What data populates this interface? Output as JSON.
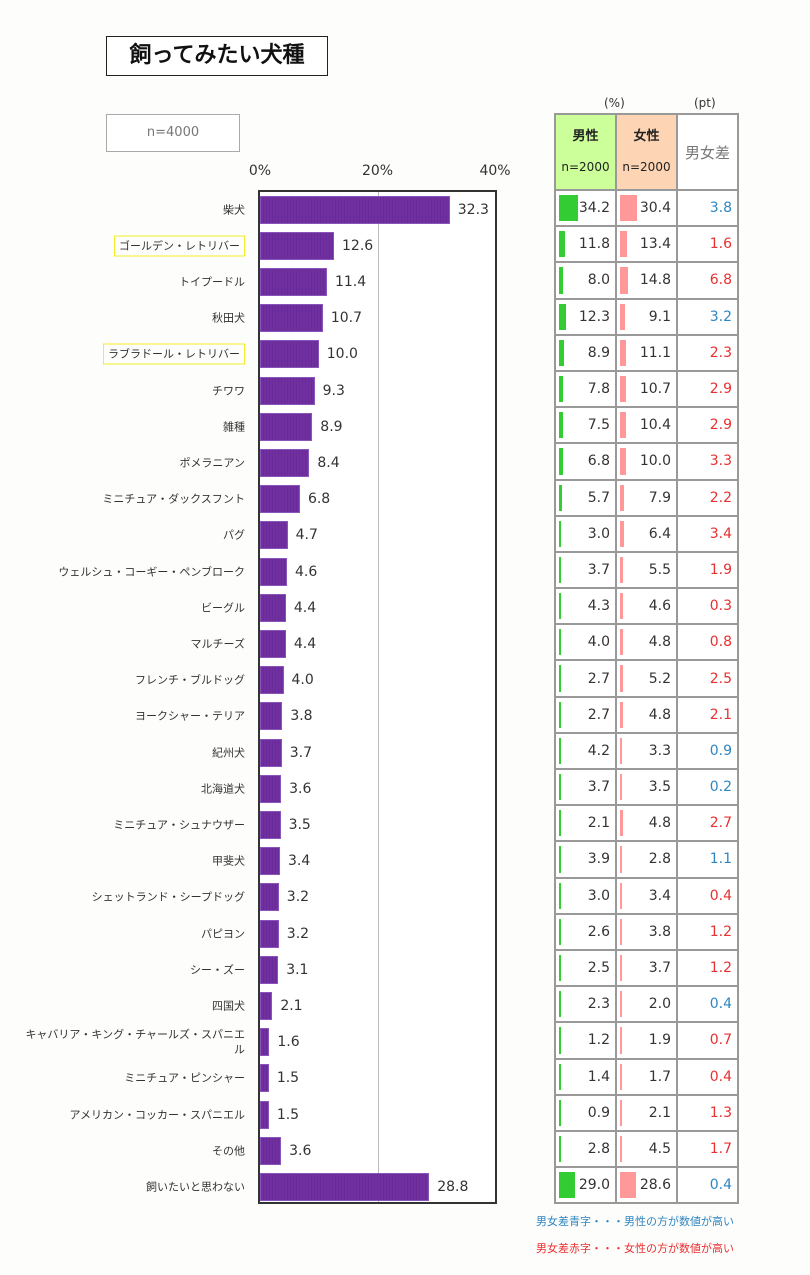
{
  "title": "飼ってみたい犬種",
  "sample_note": "n=4000",
  "units": {
    "percent": "(%)",
    "pt": "(pt)"
  },
  "table_header": {
    "male": "男性",
    "male_n": "n=2000",
    "female": "女性",
    "female_n": "n=2000",
    "diff": "男女差"
  },
  "legend": {
    "blue": "男女差青字・・・男性の方が数値が高い",
    "red": "男女差赤字・・・女性の方が数値が高い"
  },
  "colors": {
    "bar": "#7030a0",
    "male": "#33cc33",
    "female": "#ff9999",
    "male_header": "#ccff99",
    "female_header": "#fdd5b4",
    "diff_blue": "#2e86c1",
    "diff_red": "#e83030",
    "highlight": "#f2ee2a"
  },
  "chart_data": {
    "type": "bar",
    "orientation": "horizontal",
    "title": "飼ってみたい犬種",
    "xlabel": "",
    "ylabel": "",
    "xlim": [
      0,
      40
    ],
    "ticks": [
      "0%",
      "20%",
      "40%"
    ],
    "tick_values": [
      0,
      20,
      40
    ],
    "grid": true,
    "categories": [
      "柴犬",
      "ゴールデン・レトリバー",
      "トイプードル",
      "秋田犬",
      "ラブラドール・レトリバー",
      "チワワ",
      "雑種",
      "ポメラニアン",
      "ミニチュア・ダックスフント",
      "パグ",
      "ウェルシュ・コーギー・ペンブローク",
      "ビーグル",
      "マルチーズ",
      "フレンチ・ブルドッグ",
      "ヨークシャー・テリア",
      "紀州犬",
      "北海道犬",
      "ミニチュア・シュナウザー",
      "甲斐犬",
      "シェットランド・シープドッグ",
      "パピヨン",
      "シー・ズー",
      "四国犬",
      "キャバリア・キング・チャールズ・スパニエル",
      "ミニチュア・ピンシャー",
      "アメリカン・コッカー・スパニエル",
      "その他",
      "飼いたいと思わない"
    ],
    "highlighted": [
      "ゴールデン・レトリバー",
      "ラブラドール・レトリバー"
    ],
    "values": [
      32.3,
      12.6,
      11.4,
      10.7,
      10.0,
      9.3,
      8.9,
      8.4,
      6.8,
      4.7,
      4.6,
      4.4,
      4.4,
      4.0,
      3.8,
      3.7,
      3.6,
      3.5,
      3.4,
      3.2,
      3.2,
      3.1,
      2.1,
      1.6,
      1.5,
      1.5,
      3.6,
      28.8
    ],
    "labels": [
      "32.3",
      "12.6",
      "11.4",
      "10.7",
      "10.0",
      "9.3",
      "8.9",
      "8.4",
      "6.8",
      "4.7",
      "4.6",
      "4.4",
      "4.4",
      "4.0",
      "3.8",
      "3.7",
      "3.6",
      "3.5",
      "3.4",
      "3.2",
      "3.2",
      "3.1",
      "2.1",
      "1.6",
      "1.5",
      "1.5",
      "3.6",
      "28.8"
    ],
    "series": [
      {
        "name": "男性",
        "n": 2000,
        "values": [
          "34.2",
          "11.8",
          "8.0",
          "12.3",
          "8.9",
          "7.8",
          "7.5",
          "6.8",
          "5.7",
          "3.0",
          "3.7",
          "4.3",
          "4.0",
          "2.7",
          "2.7",
          "4.2",
          "3.7",
          "2.1",
          "3.9",
          "3.0",
          "2.6",
          "2.5",
          "2.3",
          "1.2",
          "1.4",
          "0.9",
          "2.8",
          "29.0"
        ]
      },
      {
        "name": "女性",
        "n": 2000,
        "values": [
          "30.4",
          "13.4",
          "14.8",
          "9.1",
          "11.1",
          "10.7",
          "10.4",
          "10.0",
          "7.9",
          "6.4",
          "5.5",
          "4.6",
          "4.8",
          "5.2",
          "4.8",
          "3.3",
          "3.5",
          "4.8",
          "2.8",
          "3.4",
          "3.8",
          "3.7",
          "2.0",
          "1.9",
          "1.7",
          "2.1",
          "4.5",
          "28.6"
        ]
      },
      {
        "name": "男女差",
        "unit": "pt",
        "values": [
          "3.8",
          "1.6",
          "6.8",
          "3.2",
          "2.3",
          "2.9",
          "2.9",
          "3.3",
          "2.2",
          "3.4",
          "1.9",
          "0.3",
          "0.8",
          "2.5",
          "2.1",
          "0.9",
          "0.2",
          "2.7",
          "1.1",
          "0.4",
          "1.2",
          "1.2",
          "0.4",
          "0.7",
          "0.4",
          "1.3",
          "1.7",
          "0.4"
        ],
        "higher": [
          "male",
          "female",
          "female",
          "male",
          "female",
          "female",
          "female",
          "female",
          "female",
          "female",
          "female",
          "female",
          "female",
          "female",
          "female",
          "male",
          "male",
          "female",
          "male",
          "female",
          "female",
          "female",
          "male",
          "female",
          "female",
          "female",
          "female",
          "male"
        ]
      }
    ]
  }
}
